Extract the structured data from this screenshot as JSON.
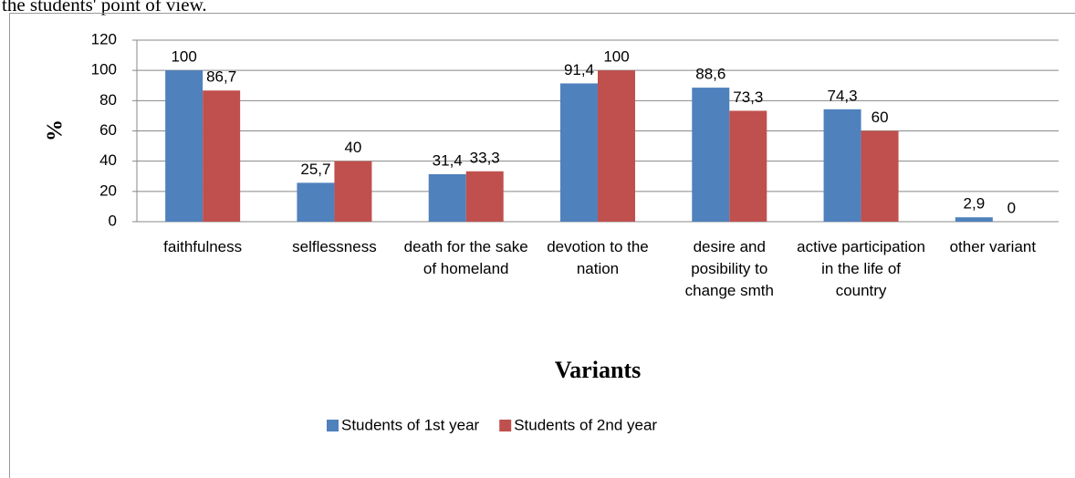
{
  "caption": "the students' point of view.",
  "chart_data": {
    "type": "bar",
    "xlabel": "Variants",
    "ylabel": "%",
    "categories": [
      "faithfulness",
      "selflessness",
      "death for the sake of homeland",
      "devotion to the nation",
      "desire and posibility to change smth",
      "active participation in the life of country",
      "other variant"
    ],
    "series": [
      {
        "name": "Students of 1st year",
        "color": "#4f81bd",
        "values": [
          100,
          25.7,
          31.4,
          91.4,
          88.6,
          74.3,
          2.9
        ],
        "value_labels": [
          "100",
          "25,7",
          "31,4",
          "91,4",
          "88,6",
          "74,3",
          "2,9"
        ]
      },
      {
        "name": "Students of 2nd year",
        "color": "#c0504d",
        "values": [
          86.7,
          40,
          33.3,
          100,
          73.3,
          60,
          0
        ],
        "value_labels": [
          "86,7",
          "40",
          "33,3",
          "100",
          "73,3",
          "60",
          "0"
        ]
      }
    ],
    "ylim": [
      0,
      120
    ],
    "yticks": [
      0,
      20,
      40,
      60,
      80,
      100,
      120
    ],
    "grid": true,
    "legend": "bottom"
  }
}
